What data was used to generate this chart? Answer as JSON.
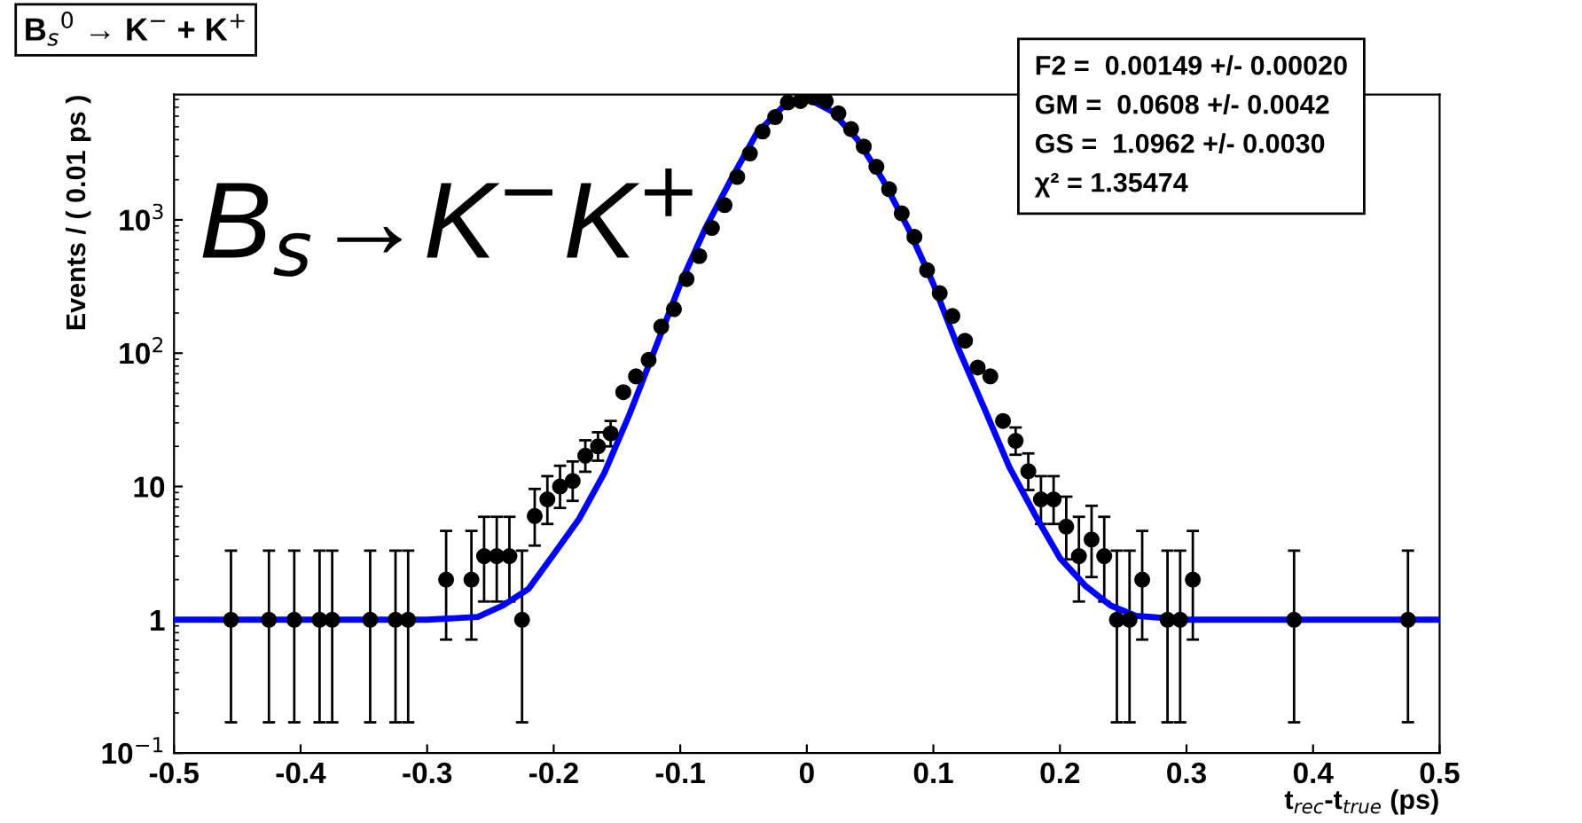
{
  "chart_data": {
    "type": "scatter",
    "title": "B$_{s}$$^{0}$ → K$^{−}$ + K$^{+}$",
    "xlabel": "t$_{rec}$-t$_{true}$ (ps)",
    "ylabel": "Events / ( 0.01 ps )",
    "log": "y",
    "xlim": [
      -0.5,
      0.5
    ],
    "xticks": [
      -0.5,
      -0.4,
      -0.3,
      -0.2,
      -0.1,
      0,
      0.1,
      0.2,
      0.3,
      0.4,
      0.5
    ],
    "ylim": [
      0.1,
      8700
    ],
    "yticks": [
      {
        "value": 0.1,
        "label": "10$^{−1}$"
      },
      1,
      10,
      {
        "value": 100,
        "label": "10$^{2}$"
      },
      {
        "value": 1000,
        "label": "10$^{3}$"
      }
    ],
    "grid": false,
    "legend": false,
    "annotations": [
      "B$_{s}$→K$^{−}$K$^{+}$",
      "F2 =  0.00149 +/- 0.00020",
      "GM =  0.0608 +/- 0.0042",
      "GS =  1.0962 +/- 0.0030",
      "χ² = 1.35474"
    ],
    "series": [
      {
        "color": "#000000",
        "marker": "circle",
        "x": [
          -0.455,
          -0.425,
          -0.405,
          -0.385,
          -0.375,
          -0.345,
          -0.325,
          -0.315,
          -0.285,
          -0.265,
          -0.255,
          -0.245,
          -0.235,
          -0.225,
          -0.215,
          -0.205,
          -0.195,
          -0.185,
          -0.175,
          -0.165,
          -0.155,
          -0.145,
          -0.135,
          -0.125,
          -0.115,
          -0.105,
          -0.095,
          -0.085,
          -0.075,
          -0.065,
          -0.055,
          -0.045,
          -0.035,
          -0.025,
          -0.015,
          -0.005,
          0.005,
          0.015,
          0.025,
          0.035,
          0.045,
          0.055,
          0.065,
          0.075,
          0.085,
          0.095,
          0.105,
          0.115,
          0.125,
          0.135,
          0.145,
          0.155,
          0.165,
          0.175,
          0.185,
          0.195,
          0.205,
          0.215,
          0.225,
          0.235,
          0.245,
          0.255,
          0.265,
          0.285,
          0.295,
          0.305,
          0.385,
          0.475
        ],
        "values": [
          1,
          1,
          1,
          1,
          1,
          1,
          1,
          1,
          2,
          2,
          3,
          3,
          3,
          1,
          6,
          8,
          10,
          11,
          17,
          20,
          25,
          51,
          67,
          89,
          158,
          214,
          360,
          535,
          870,
          1290,
          2100,
          3150,
          4600,
          5900,
          7600,
          7800,
          8300,
          7800,
          6300,
          4800,
          3550,
          2500,
          1700,
          1120,
          745,
          420,
          282,
          190,
          124,
          78,
          67,
          31,
          22,
          13,
          8,
          8,
          5,
          3,
          4,
          3,
          1,
          1,
          2,
          1,
          1,
          2,
          1,
          1
        ],
        "errors": [
          [
            0.17,
            3.3
          ],
          [
            0.17,
            3.3
          ],
          [
            0.17,
            3.3
          ],
          [
            0.17,
            3.3
          ],
          [
            0.17,
            3.3
          ],
          [
            0.17,
            3.3
          ],
          [
            0.17,
            3.3
          ],
          [
            0.17,
            3.3
          ],
          [
            0.71,
            4.64
          ],
          [
            0.71,
            4.64
          ],
          [
            1.37,
            5.92
          ],
          [
            1.37,
            5.92
          ],
          [
            1.37,
            5.92
          ],
          [
            0.17,
            3.3
          ],
          [
            3.6,
            9.58
          ],
          [
            5.23,
            11.95
          ],
          [
            6.9,
            14.3
          ],
          [
            7.8,
            15.4
          ],
          [
            12.9,
            22.2
          ],
          [
            15.6,
            25.5
          ],
          [
            20,
            31
          ],
          null,
          null,
          null,
          null,
          null,
          null,
          null,
          null,
          null,
          null,
          null,
          null,
          null,
          null,
          null,
          null,
          null,
          null,
          null,
          null,
          null,
          null,
          null,
          null,
          null,
          null,
          null,
          null,
          null,
          null,
          null,
          [
            17.3,
            27.7
          ],
          [
            9.4,
            17.7
          ],
          [
            5.23,
            11.95
          ],
          [
            5.23,
            11.95
          ],
          [
            2.84,
            8.38
          ],
          [
            1.37,
            5.92
          ],
          [
            2.09,
            7.16
          ],
          [
            1.37,
            5.92
          ],
          [
            0.17,
            3.3
          ],
          [
            0.17,
            3.3
          ],
          [
            0.71,
            4.64
          ],
          [
            0.17,
            3.3
          ],
          [
            0.17,
            3.3
          ],
          [
            0.71,
            4.64
          ],
          [
            0.17,
            3.3
          ],
          [
            0.17,
            3.3
          ]
        ]
      },
      {
        "type": "line",
        "color": "#0000ff",
        "line_style": "solid",
        "x": [
          -0.5,
          -0.3,
          -0.26,
          -0.24,
          -0.22,
          -0.2,
          -0.18,
          -0.16,
          -0.14,
          -0.12,
          -0.1,
          -0.08,
          -0.06,
          -0.04,
          -0.02,
          0,
          0.02,
          0.04,
          0.06,
          0.08,
          0.1,
          0.12,
          0.14,
          0.16,
          0.18,
          0.2,
          0.22,
          0.24,
          0.26,
          0.3,
          0.5
        ],
        "values": [
          1,
          1,
          1.05,
          1.28,
          1.7,
          3.1,
          5.7,
          12.6,
          35,
          107,
          330,
          870,
          2000,
          4400,
          6900,
          8200,
          6500,
          4000,
          2000,
          870,
          330,
          107,
          39,
          14,
          6.2,
          2.9,
          1.8,
          1.28,
          1.07,
          1,
          1
        ]
      }
    ]
  }
}
